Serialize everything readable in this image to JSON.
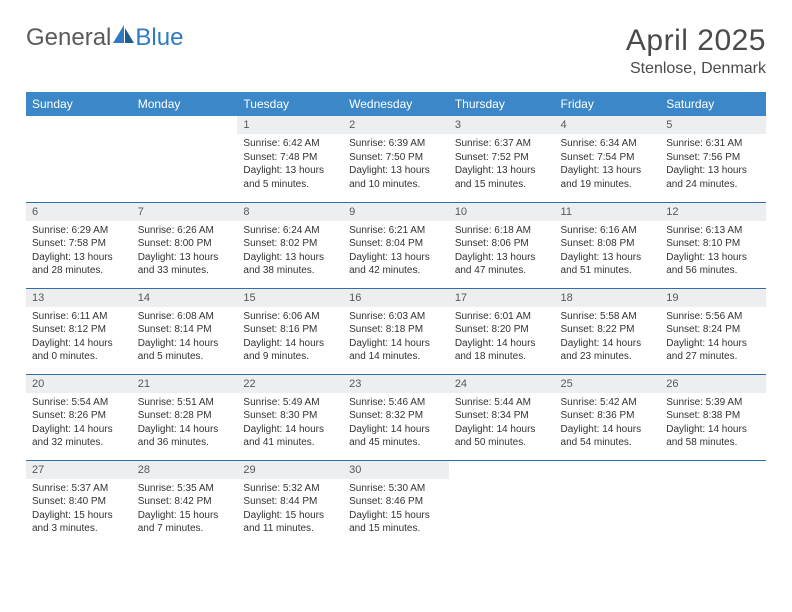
{
  "brand": {
    "name1": "General",
    "name2": "Blue"
  },
  "title": {
    "month": "April 2025",
    "location": "Stenlose, Denmark"
  },
  "colors": {
    "header_bg": "#3b87c8",
    "header_text": "#ffffff",
    "daynum_bg": "#eceef0",
    "row_divider": "#2f6ea8",
    "logo_grey": "#5a5a5a",
    "logo_blue": "#2f7ac2"
  },
  "weekdays": [
    "Sunday",
    "Monday",
    "Tuesday",
    "Wednesday",
    "Thursday",
    "Friday",
    "Saturday"
  ],
  "weeks": [
    [
      null,
      null,
      {
        "n": "1",
        "sr": "Sunrise: 6:42 AM",
        "ss": "Sunset: 7:48 PM",
        "dl": "Daylight: 13 hours and 5 minutes."
      },
      {
        "n": "2",
        "sr": "Sunrise: 6:39 AM",
        "ss": "Sunset: 7:50 PM",
        "dl": "Daylight: 13 hours and 10 minutes."
      },
      {
        "n": "3",
        "sr": "Sunrise: 6:37 AM",
        "ss": "Sunset: 7:52 PM",
        "dl": "Daylight: 13 hours and 15 minutes."
      },
      {
        "n": "4",
        "sr": "Sunrise: 6:34 AM",
        "ss": "Sunset: 7:54 PM",
        "dl": "Daylight: 13 hours and 19 minutes."
      },
      {
        "n": "5",
        "sr": "Sunrise: 6:31 AM",
        "ss": "Sunset: 7:56 PM",
        "dl": "Daylight: 13 hours and 24 minutes."
      }
    ],
    [
      {
        "n": "6",
        "sr": "Sunrise: 6:29 AM",
        "ss": "Sunset: 7:58 PM",
        "dl": "Daylight: 13 hours and 28 minutes."
      },
      {
        "n": "7",
        "sr": "Sunrise: 6:26 AM",
        "ss": "Sunset: 8:00 PM",
        "dl": "Daylight: 13 hours and 33 minutes."
      },
      {
        "n": "8",
        "sr": "Sunrise: 6:24 AM",
        "ss": "Sunset: 8:02 PM",
        "dl": "Daylight: 13 hours and 38 minutes."
      },
      {
        "n": "9",
        "sr": "Sunrise: 6:21 AM",
        "ss": "Sunset: 8:04 PM",
        "dl": "Daylight: 13 hours and 42 minutes."
      },
      {
        "n": "10",
        "sr": "Sunrise: 6:18 AM",
        "ss": "Sunset: 8:06 PM",
        "dl": "Daylight: 13 hours and 47 minutes."
      },
      {
        "n": "11",
        "sr": "Sunrise: 6:16 AM",
        "ss": "Sunset: 8:08 PM",
        "dl": "Daylight: 13 hours and 51 minutes."
      },
      {
        "n": "12",
        "sr": "Sunrise: 6:13 AM",
        "ss": "Sunset: 8:10 PM",
        "dl": "Daylight: 13 hours and 56 minutes."
      }
    ],
    [
      {
        "n": "13",
        "sr": "Sunrise: 6:11 AM",
        "ss": "Sunset: 8:12 PM",
        "dl": "Daylight: 14 hours and 0 minutes."
      },
      {
        "n": "14",
        "sr": "Sunrise: 6:08 AM",
        "ss": "Sunset: 8:14 PM",
        "dl": "Daylight: 14 hours and 5 minutes."
      },
      {
        "n": "15",
        "sr": "Sunrise: 6:06 AM",
        "ss": "Sunset: 8:16 PM",
        "dl": "Daylight: 14 hours and 9 minutes."
      },
      {
        "n": "16",
        "sr": "Sunrise: 6:03 AM",
        "ss": "Sunset: 8:18 PM",
        "dl": "Daylight: 14 hours and 14 minutes."
      },
      {
        "n": "17",
        "sr": "Sunrise: 6:01 AM",
        "ss": "Sunset: 8:20 PM",
        "dl": "Daylight: 14 hours and 18 minutes."
      },
      {
        "n": "18",
        "sr": "Sunrise: 5:58 AM",
        "ss": "Sunset: 8:22 PM",
        "dl": "Daylight: 14 hours and 23 minutes."
      },
      {
        "n": "19",
        "sr": "Sunrise: 5:56 AM",
        "ss": "Sunset: 8:24 PM",
        "dl": "Daylight: 14 hours and 27 minutes."
      }
    ],
    [
      {
        "n": "20",
        "sr": "Sunrise: 5:54 AM",
        "ss": "Sunset: 8:26 PM",
        "dl": "Daylight: 14 hours and 32 minutes."
      },
      {
        "n": "21",
        "sr": "Sunrise: 5:51 AM",
        "ss": "Sunset: 8:28 PM",
        "dl": "Daylight: 14 hours and 36 minutes."
      },
      {
        "n": "22",
        "sr": "Sunrise: 5:49 AM",
        "ss": "Sunset: 8:30 PM",
        "dl": "Daylight: 14 hours and 41 minutes."
      },
      {
        "n": "23",
        "sr": "Sunrise: 5:46 AM",
        "ss": "Sunset: 8:32 PM",
        "dl": "Daylight: 14 hours and 45 minutes."
      },
      {
        "n": "24",
        "sr": "Sunrise: 5:44 AM",
        "ss": "Sunset: 8:34 PM",
        "dl": "Daylight: 14 hours and 50 minutes."
      },
      {
        "n": "25",
        "sr": "Sunrise: 5:42 AM",
        "ss": "Sunset: 8:36 PM",
        "dl": "Daylight: 14 hours and 54 minutes."
      },
      {
        "n": "26",
        "sr": "Sunrise: 5:39 AM",
        "ss": "Sunset: 8:38 PM",
        "dl": "Daylight: 14 hours and 58 minutes."
      }
    ],
    [
      {
        "n": "27",
        "sr": "Sunrise: 5:37 AM",
        "ss": "Sunset: 8:40 PM",
        "dl": "Daylight: 15 hours and 3 minutes."
      },
      {
        "n": "28",
        "sr": "Sunrise: 5:35 AM",
        "ss": "Sunset: 8:42 PM",
        "dl": "Daylight: 15 hours and 7 minutes."
      },
      {
        "n": "29",
        "sr": "Sunrise: 5:32 AM",
        "ss": "Sunset: 8:44 PM",
        "dl": "Daylight: 15 hours and 11 minutes."
      },
      {
        "n": "30",
        "sr": "Sunrise: 5:30 AM",
        "ss": "Sunset: 8:46 PM",
        "dl": "Daylight: 15 hours and 15 minutes."
      },
      null,
      null,
      null
    ]
  ]
}
